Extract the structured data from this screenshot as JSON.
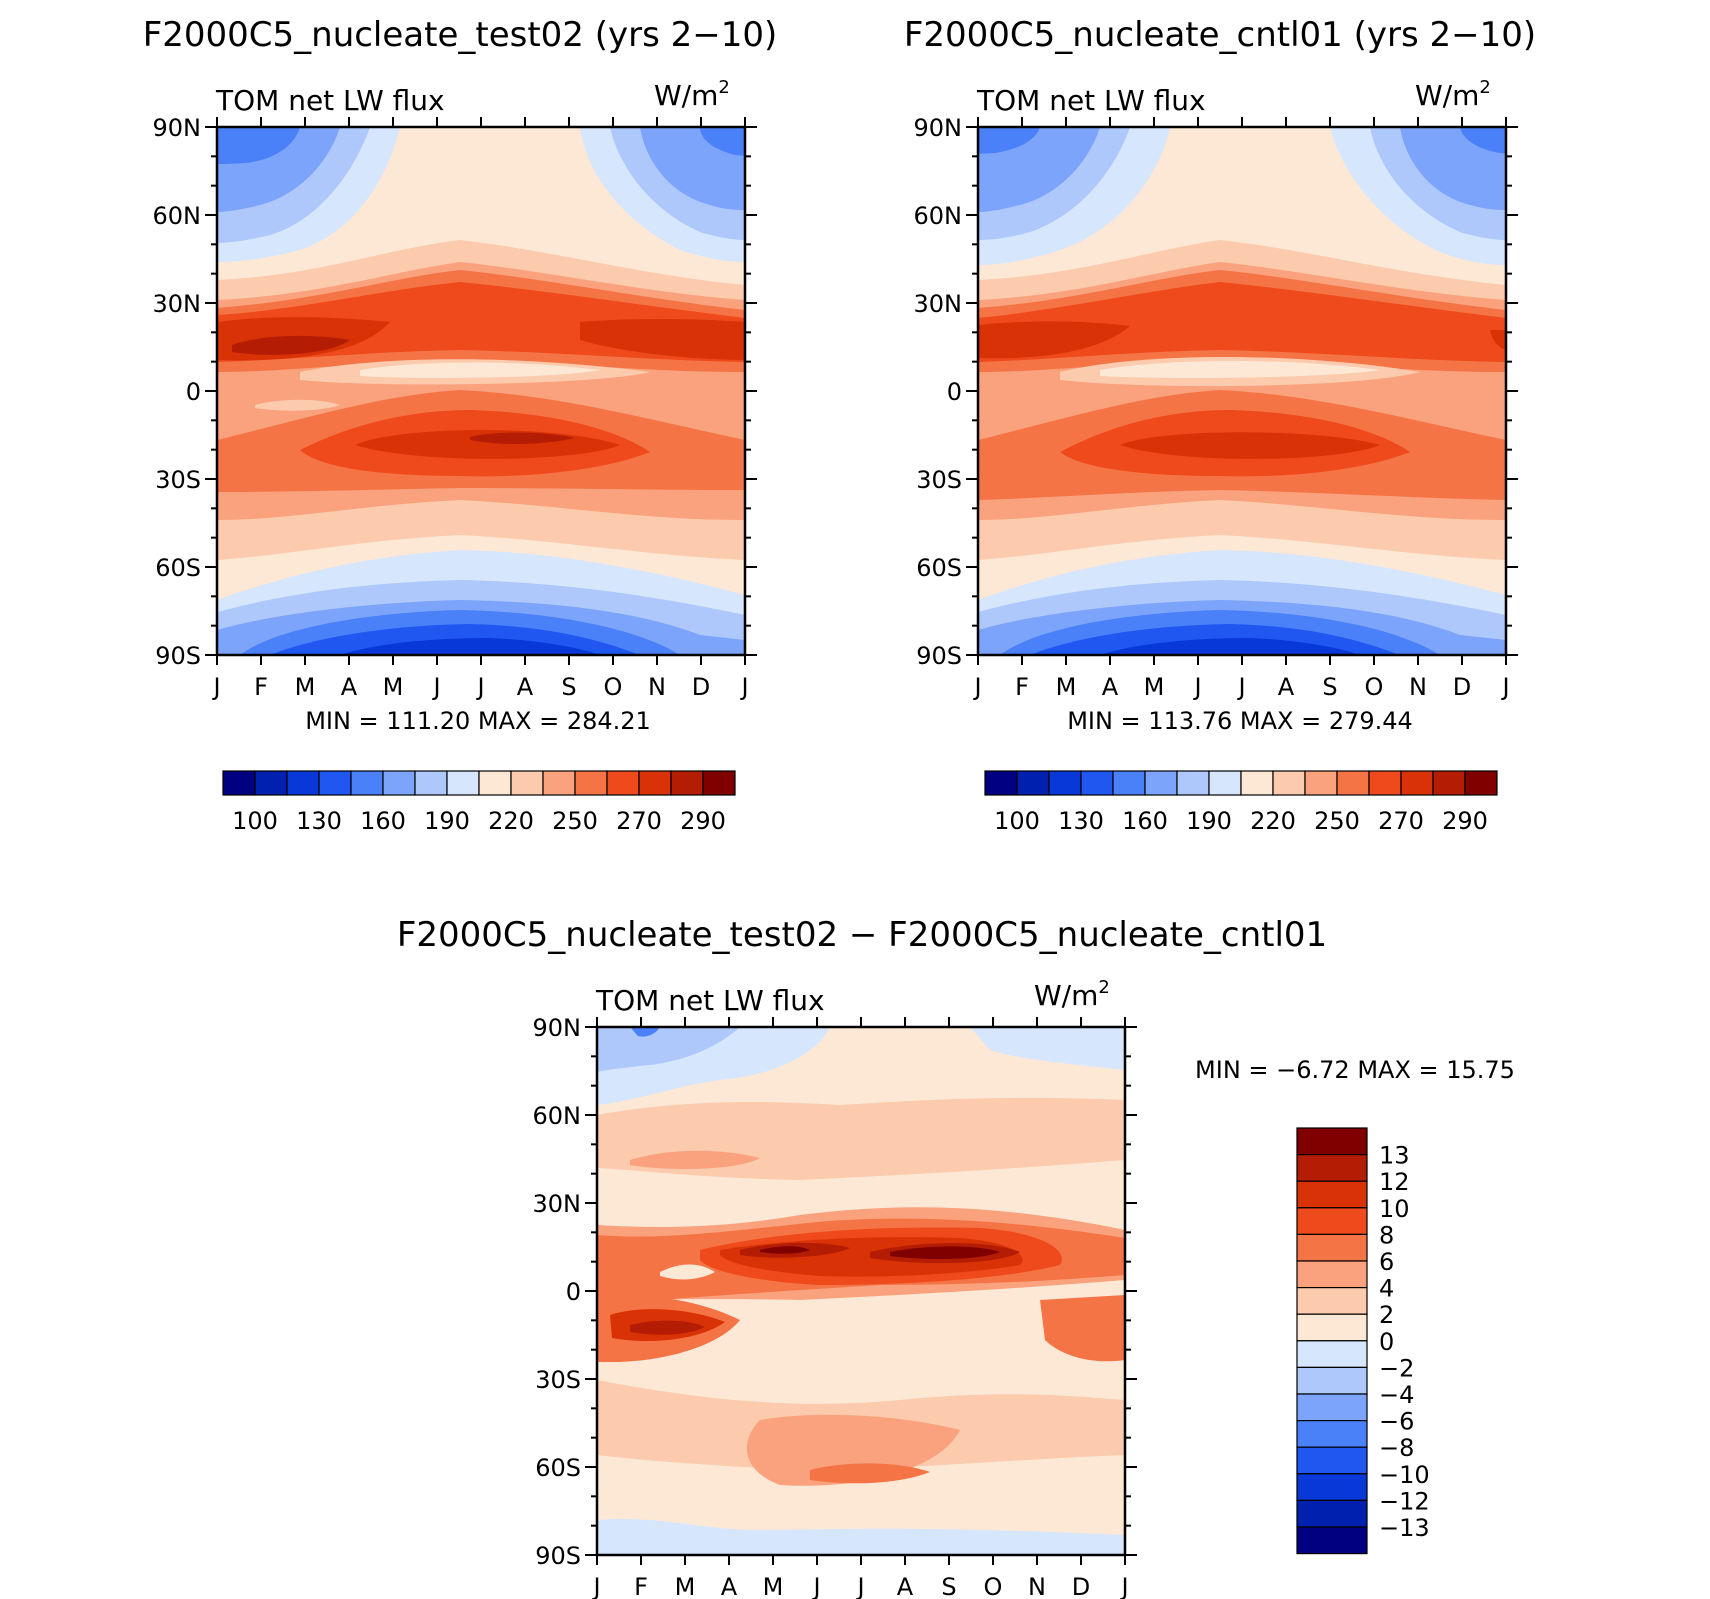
{
  "palette_main": [
    "#000080",
    "#0020b0",
    "#0838d8",
    "#1f57f0",
    "#4a80f8",
    "#7da4fb",
    "#aec8fc",
    "#d6e6fd",
    "#fde8d6",
    "#fccaad",
    "#f9a27d",
    "#f57446",
    "#ee4a1c",
    "#d93206",
    "#b51c04",
    "#800000"
  ],
  "palette_diff": [
    "#000080",
    "#0020b0",
    "#0838d8",
    "#1f57f0",
    "#4a80f8",
    "#7da4fb",
    "#aec8fc",
    "#d6e6fd",
    "#fde8d6",
    "#fccaad",
    "#f9a27d",
    "#f57446",
    "#ee4a1c",
    "#d93206",
    "#b51c04",
    "#800000"
  ],
  "chart_data": [
    {
      "type": "heatmap",
      "id": "test",
      "title": "F2000C5_nucleate_test02 (yrs 2−10)",
      "left_label": "TOM net LW flux",
      "right_label": "W/m",
      "right_label_sup": "2",
      "x_ticks": [
        "J",
        "F",
        "M",
        "A",
        "M",
        "J",
        "J",
        "A",
        "S",
        "O",
        "N",
        "D",
        "J"
      ],
      "y_ticks": [
        "90N",
        "60N",
        "30N",
        "0",
        "30S",
        "60S",
        "90S"
      ],
      "min_label": "MIN = 111.20  MAX = 284.21",
      "levels": [
        "100",
        "130",
        "160",
        "190",
        "220",
        "250",
        "270",
        "290"
      ],
      "xlabel": "",
      "ylabel": ""
    },
    {
      "type": "heatmap",
      "id": "cntl",
      "title": "F2000C5_nucleate_cntl01 (yrs 2−10)",
      "left_label": "TOM net LW flux",
      "right_label": "W/m",
      "right_label_sup": "2",
      "x_ticks": [
        "J",
        "F",
        "M",
        "A",
        "M",
        "J",
        "J",
        "A",
        "S",
        "O",
        "N",
        "D",
        "J"
      ],
      "y_ticks": [
        "90N",
        "60N",
        "30N",
        "0",
        "30S",
        "60S",
        "90S"
      ],
      "min_label": "MIN = 113.76  MAX = 279.44",
      "levels": [
        "100",
        "130",
        "160",
        "190",
        "220",
        "250",
        "270",
        "290"
      ],
      "xlabel": "",
      "ylabel": ""
    },
    {
      "type": "heatmap",
      "id": "diff",
      "title": "F2000C5_nucleate_test02 − F2000C5_nucleate_cntl01",
      "left_label": "TOM net LW flux",
      "right_label": "W/m",
      "right_label_sup": "2",
      "x_ticks": [
        "J",
        "F",
        "M",
        "A",
        "M",
        "J",
        "J",
        "A",
        "S",
        "O",
        "N",
        "D",
        "J"
      ],
      "y_ticks": [
        "90N",
        "60N",
        "30N",
        "0",
        "30S",
        "60S",
        "90S"
      ],
      "min_label": "MIN =   −6.72  MAX =   15.75",
      "levels": [
        "13",
        "12",
        "10",
        "8",
        "6",
        "4",
        "2",
        "0",
        "−2",
        "−4",
        "−6",
        "−8",
        "−10",
        "−12",
        "−13"
      ],
      "xlabel": "",
      "ylabel": ""
    }
  ]
}
